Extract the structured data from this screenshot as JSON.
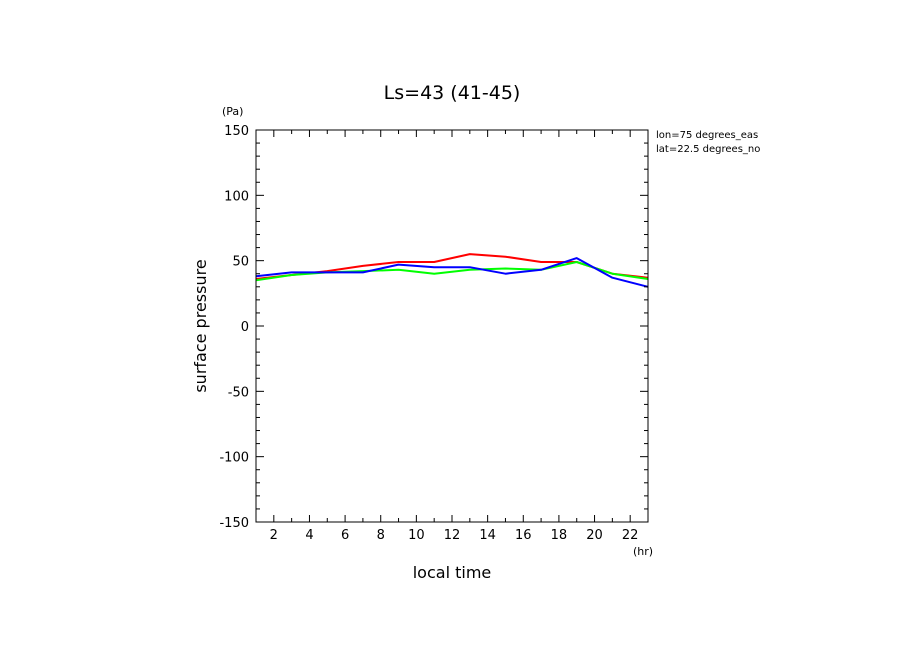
{
  "chart_data": {
    "type": "line",
    "title": "Ls=43 (41-45)",
    "xlabel": "local time",
    "ylabel": "surface pressure",
    "x_unit": "(hr)",
    "y_unit": "(Pa)",
    "annotations": [
      "lon=75 degrees_eas",
      "lat=22.5 degrees_no"
    ],
    "xlim": [
      1,
      23
    ],
    "ylim": [
      -150,
      150
    ],
    "x_ticks": [
      2,
      4,
      6,
      8,
      10,
      12,
      14,
      16,
      18,
      20,
      22
    ],
    "y_ticks": [
      -150,
      -100,
      -50,
      0,
      50,
      100,
      150
    ],
    "grid": false,
    "x": [
      1,
      3,
      5,
      7,
      9,
      11,
      13,
      15,
      17,
      19,
      21,
      23
    ],
    "series": [
      {
        "color": "#ff0000",
        "values": [
          36,
          39,
          42,
          46,
          49,
          49,
          55,
          53,
          49,
          49,
          40,
          37
        ]
      },
      {
        "color": "#00ff00",
        "values": [
          35,
          39,
          41,
          42,
          43,
          40,
          43,
          44,
          43,
          49,
          40,
          36
        ]
      },
      {
        "color": "#0000ff",
        "values": [
          38,
          41,
          41,
          41,
          47,
          45,
          45,
          40,
          43,
          52,
          37,
          30
        ]
      }
    ]
  }
}
